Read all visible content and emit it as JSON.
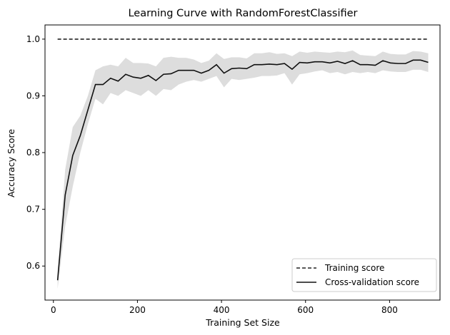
{
  "chart_data": {
    "type": "line",
    "title": "Learning Curve with RandomForestClassifier",
    "xlabel": "Training Set Size",
    "ylabel": "Accuracy Score",
    "xlim": [
      -20,
      920
    ],
    "ylim": [
      0.54,
      1.025
    ],
    "xticks": [
      0,
      200,
      400,
      600,
      800
    ],
    "yticks": [
      0.6,
      0.7,
      0.8,
      0.9,
      1.0
    ],
    "ytick_labels": [
      "0.6",
      "0.7",
      "0.8",
      "0.9",
      "1.0"
    ],
    "grid": false,
    "legend_position": "lower-right",
    "x": [
      10,
      28,
      46,
      64,
      82,
      100,
      118,
      136,
      154,
      172,
      190,
      208,
      226,
      244,
      262,
      280,
      298,
      316,
      334,
      352,
      370,
      388,
      406,
      424,
      442,
      460,
      478,
      496,
      514,
      532,
      550,
      568,
      586,
      604,
      622,
      640,
      658,
      676,
      694,
      712,
      730,
      748,
      766,
      784,
      802,
      820,
      838,
      856,
      874,
      892
    ],
    "series": [
      {
        "name": "Training score",
        "style": "dashed",
        "color": "#222222",
        "values": [
          1.0,
          1.0,
          1.0,
          1.0,
          1.0,
          1.0,
          1.0,
          1.0,
          1.0,
          1.0,
          1.0,
          1.0,
          1.0,
          1.0,
          1.0,
          1.0,
          1.0,
          1.0,
          1.0,
          1.0,
          1.0,
          1.0,
          1.0,
          1.0,
          1.0,
          1.0,
          1.0,
          1.0,
          1.0,
          1.0,
          1.0,
          1.0,
          1.0,
          1.0,
          1.0,
          1.0,
          1.0,
          1.0,
          1.0,
          1.0,
          1.0,
          1.0,
          1.0,
          1.0,
          1.0,
          1.0,
          1.0,
          1.0,
          1.0,
          1.0
        ]
      },
      {
        "name": "Cross-validation score",
        "style": "solid",
        "color": "#111111",
        "values": [
          0.575,
          0.725,
          0.795,
          0.83,
          0.875,
          0.92,
          0.92,
          0.931,
          0.926,
          0.938,
          0.933,
          0.931,
          0.936,
          0.927,
          0.938,
          0.939,
          0.945,
          0.945,
          0.945,
          0.94,
          0.945,
          0.955,
          0.94,
          0.948,
          0.949,
          0.948,
          0.955,
          0.955,
          0.956,
          0.955,
          0.957,
          0.947,
          0.959,
          0.958,
          0.96,
          0.96,
          0.958,
          0.961,
          0.957,
          0.962,
          0.955,
          0.955,
          0.954,
          0.962,
          0.958,
          0.957,
          0.957,
          0.963,
          0.963,
          0.959
        ],
        "band_lower": [
          0.56,
          0.67,
          0.74,
          0.8,
          0.85,
          0.895,
          0.885,
          0.905,
          0.9,
          0.91,
          0.905,
          0.9,
          0.91,
          0.9,
          0.912,
          0.91,
          0.92,
          0.925,
          0.928,
          0.925,
          0.93,
          0.935,
          0.915,
          0.93,
          0.928,
          0.93,
          0.932,
          0.935,
          0.935,
          0.936,
          0.94,
          0.92,
          0.938,
          0.94,
          0.943,
          0.945,
          0.94,
          0.942,
          0.938,
          0.942,
          0.94,
          0.942,
          0.94,
          0.945,
          0.943,
          0.942,
          0.942,
          0.946,
          0.946,
          0.942
        ],
        "band_upper": [
          0.59,
          0.77,
          0.845,
          0.865,
          0.9,
          0.945,
          0.952,
          0.955,
          0.952,
          0.967,
          0.958,
          0.958,
          0.957,
          0.952,
          0.967,
          0.969,
          0.967,
          0.967,
          0.964,
          0.958,
          0.962,
          0.975,
          0.965,
          0.968,
          0.968,
          0.966,
          0.975,
          0.975,
          0.977,
          0.974,
          0.975,
          0.97,
          0.978,
          0.976,
          0.978,
          0.977,
          0.976,
          0.978,
          0.977,
          0.98,
          0.972,
          0.971,
          0.97,
          0.978,
          0.974,
          0.973,
          0.973,
          0.979,
          0.978,
          0.975
        ]
      }
    ]
  }
}
